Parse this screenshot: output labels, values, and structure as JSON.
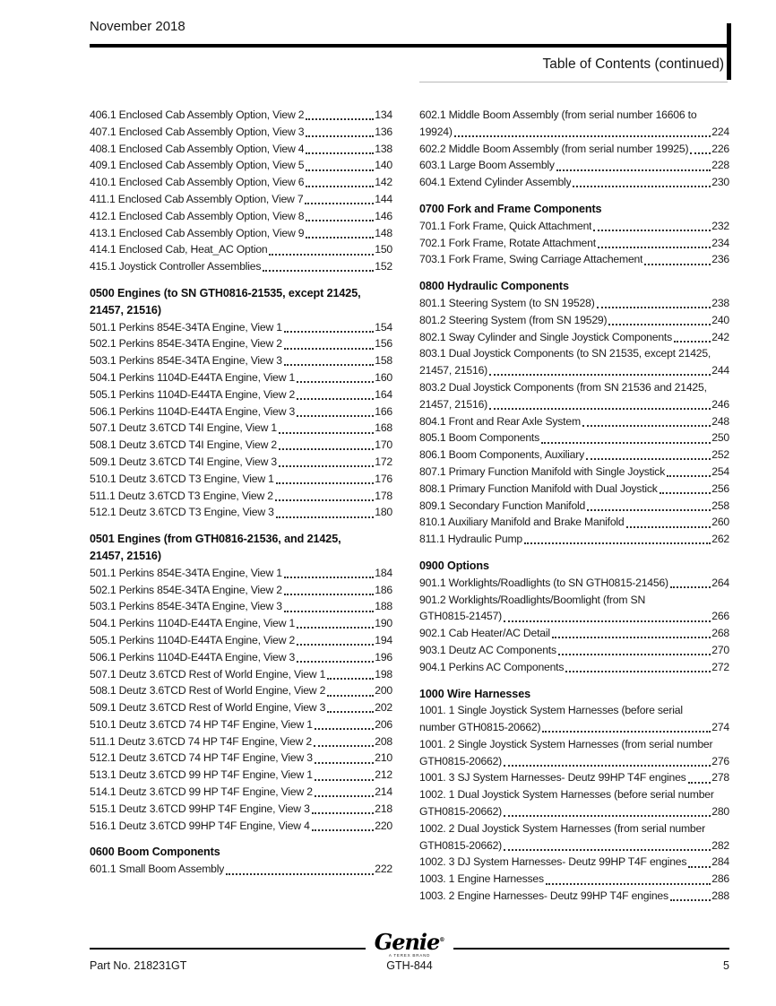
{
  "header": {
    "date": "November 2018",
    "title": "Table of Contents (continued)"
  },
  "toc": {
    "left_column": [
      {
        "heading_lines": [],
        "entries": [
          {
            "lines": [
              "406.1 Enclosed Cab Assembly Option, View 2"
            ],
            "page": "134"
          },
          {
            "lines": [
              "407.1 Enclosed Cab Assembly Option, View 3"
            ],
            "page": "136"
          },
          {
            "lines": [
              "408.1 Enclosed Cab Assembly Option, View 4"
            ],
            "page": "138"
          },
          {
            "lines": [
              "409.1 Enclosed Cab Assembly Option, View 5"
            ],
            "page": "140"
          },
          {
            "lines": [
              "410.1 Enclosed Cab Assembly Option, View 6"
            ],
            "page": "142"
          },
          {
            "lines": [
              "411.1 Enclosed Cab Assembly Option, View 7"
            ],
            "page": "144"
          },
          {
            "lines": [
              "412.1 Enclosed Cab Assembly Option, View 8"
            ],
            "page": "146"
          },
          {
            "lines": [
              "413.1 Enclosed Cab Assembly Option, View 9"
            ],
            "page": "148"
          },
          {
            "lines": [
              "414.1 Enclosed Cab, Heat_AC Option"
            ],
            "page": "150"
          },
          {
            "lines": [
              "415.1 Joystick Controller Assemblies"
            ],
            "page": "152"
          }
        ]
      },
      {
        "heading_lines": [
          "0500 Engines (to SN GTH0816-21535, except 21425,",
          "21457, 21516)"
        ],
        "entries": [
          {
            "lines": [
              "501.1 Perkins 854E-34TA Engine, View 1"
            ],
            "page": "154"
          },
          {
            "lines": [
              "502.1 Perkins 854E-34TA Engine, View 2"
            ],
            "page": "156"
          },
          {
            "lines": [
              "503.1 Perkins 854E-34TA Engine, View 3"
            ],
            "page": "158"
          },
          {
            "lines": [
              "504.1 Perkins 1104D-E44TA Engine, View 1"
            ],
            "page": "160"
          },
          {
            "lines": [
              "505.1 Perkins 1104D-E44TA Engine, View 2"
            ],
            "page": "164"
          },
          {
            "lines": [
              "506.1 Perkins 1104D-E44TA Engine, View 3"
            ],
            "page": "166"
          },
          {
            "lines": [
              "507.1 Deutz 3.6TCD T4I Engine, View 1"
            ],
            "page": "168"
          },
          {
            "lines": [
              "508.1 Deutz 3.6TCD T4I Engine, View 2"
            ],
            "page": "170"
          },
          {
            "lines": [
              "509.1 Deutz 3.6TCD T4I Engine, View 3"
            ],
            "page": "172"
          },
          {
            "lines": [
              "510.1 Deutz 3.6TCD T3 Engine, View 1"
            ],
            "page": "176"
          },
          {
            "lines": [
              "511.1 Deutz 3.6TCD T3 Engine, View 2"
            ],
            "page": "178"
          },
          {
            "lines": [
              "512.1 Deutz 3.6TCD T3 Engine, View 3"
            ],
            "page": "180"
          }
        ]
      },
      {
        "heading_lines": [
          "0501 Engines (from GTH0816-21536, and 21425,",
          "21457, 21516)"
        ],
        "entries": [
          {
            "lines": [
              "501.1 Perkins 854E-34TA Engine, View 1"
            ],
            "page": "184"
          },
          {
            "lines": [
              "502.1 Perkins 854E-34TA Engine, View 2"
            ],
            "page": "186"
          },
          {
            "lines": [
              "503.1 Perkins 854E-34TA Engine, View 3"
            ],
            "page": "188"
          },
          {
            "lines": [
              "504.1 Perkins 1104D-E44TA Engine, View 1"
            ],
            "page": "190"
          },
          {
            "lines": [
              "505.1 Perkins 1104D-E44TA Engine, View 2"
            ],
            "page": "194"
          },
          {
            "lines": [
              "506.1 Perkins 1104D-E44TA Engine, View 3"
            ],
            "page": "196"
          },
          {
            "lines": [
              "507.1 Deutz 3.6TCD Rest of World Engine, View 1"
            ],
            "page": "198"
          },
          {
            "lines": [
              "508.1 Deutz 3.6TCD Rest of World Engine, View 2"
            ],
            "page": "200"
          },
          {
            "lines": [
              "509.1 Deutz 3.6TCD Rest of World Engine, View 3"
            ],
            "page": "202"
          },
          {
            "lines": [
              "510.1 Deutz 3.6TCD 74 HP T4F Engine, View 1"
            ],
            "page": "206"
          },
          {
            "lines": [
              "511.1 Deutz 3.6TCD 74 HP T4F Engine, View 2"
            ],
            "page": "208"
          },
          {
            "lines": [
              "512.1 Deutz 3.6TCD 74 HP T4F Engine, View 3"
            ],
            "page": "210"
          },
          {
            "lines": [
              "513.1 Deutz 3.6TCD 99 HP T4F Engine, View 1"
            ],
            "page": "212"
          },
          {
            "lines": [
              "514.1 Deutz 3.6TCD 99 HP T4F Engine, View 2"
            ],
            "page": "214"
          },
          {
            "lines": [
              "515.1 Deutz 3.6TCD 99HP T4F Engine, View 3"
            ],
            "page": "218"
          },
          {
            "lines": [
              "516.1 Deutz 3.6TCD 99HP T4F Engine, View 4"
            ],
            "page": "220"
          }
        ]
      },
      {
        "heading_lines": [
          "0600 Boom Components"
        ],
        "entries": [
          {
            "lines": [
              "601.1 Small Boom Assembly"
            ],
            "page": "222"
          }
        ]
      }
    ],
    "right_column": [
      {
        "heading_lines": [],
        "entries": [
          {
            "lines": [
              "602.1 Middle Boom Assembly (from serial number 16606 to",
              "19924)"
            ],
            "page": "224"
          },
          {
            "lines": [
              "602.2 Middle Boom Assembly (from serial number 19925)"
            ],
            "page": "226"
          },
          {
            "lines": [
              "603.1 Large Boom Assembly"
            ],
            "page": "228"
          },
          {
            "lines": [
              "604.1 Extend Cylinder Assembly"
            ],
            "page": "230"
          }
        ]
      },
      {
        "heading_lines": [
          "0700 Fork and Frame Components"
        ],
        "entries": [
          {
            "lines": [
              "701.1 Fork Frame, Quick Attachment"
            ],
            "page": "232"
          },
          {
            "lines": [
              "702.1 Fork Frame, Rotate Attachment"
            ],
            "page": "234"
          },
          {
            "lines": [
              "703.1 Fork Frame, Swing Carriage Attachement"
            ],
            "page": "236"
          }
        ]
      },
      {
        "heading_lines": [
          "0800 Hydraulic Components"
        ],
        "entries": [
          {
            "lines": [
              "801.1 Steering System (to SN 19528)"
            ],
            "page": "238"
          },
          {
            "lines": [
              "801.2 Steering System (from SN 19529)"
            ],
            "page": "240"
          },
          {
            "lines": [
              "802.1 Sway Cylinder and Single Joystick Components"
            ],
            "page": "242"
          },
          {
            "lines": [
              "803.1 Dual Joystick Components (to SN 21535, except 21425,",
              "21457,  21516)"
            ],
            "page": "244"
          },
          {
            "lines": [
              "803.2 Dual Joystick Components (from SN 21536 and 21425,",
              "21457,  21516)"
            ],
            "page": "246"
          },
          {
            "lines": [
              "804.1 Front and Rear Axle System"
            ],
            "page": "248"
          },
          {
            "lines": [
              "805.1 Boom Components"
            ],
            "page": "250"
          },
          {
            "lines": [
              "806.1 Boom Components, Auxiliary"
            ],
            "page": "252"
          },
          {
            "lines": [
              "807.1 Primary Function Manifold with Single Joystick"
            ],
            "page": "254"
          },
          {
            "lines": [
              "808.1 Primary Function Manifold with Dual Joystick"
            ],
            "page": "256"
          },
          {
            "lines": [
              "809.1 Secondary Function Manifold"
            ],
            "page": "258"
          },
          {
            "lines": [
              "810.1 Auxiliary Manifold and Brake Manifold"
            ],
            "page": "260"
          },
          {
            "lines": [
              "811.1 Hydraulic Pump"
            ],
            "page": "262"
          }
        ]
      },
      {
        "heading_lines": [
          "0900 Options"
        ],
        "entries": [
          {
            "lines": [
              "901.1 Worklights/Roadlights (to SN GTH0815-21456)"
            ],
            "page": "264"
          },
          {
            "lines": [
              "901.2 Worklights/Roadlights/Boomlight (from SN",
              "GTH0815-21457)"
            ],
            "page": "266"
          },
          {
            "lines": [
              "902.1 Cab Heater/AC Detail"
            ],
            "page": "268"
          },
          {
            "lines": [
              "903.1 Deutz AC Components"
            ],
            "page": "270"
          },
          {
            "lines": [
              "904.1 Perkins AC Components"
            ],
            "page": "272"
          }
        ]
      },
      {
        "heading_lines": [
          "1000 Wire Harnesses"
        ],
        "entries": [
          {
            "lines": [
              "1001. 1 Single Joystick System Harnesses (before serial",
              "number  GTH0815-20662)"
            ],
            "page": "274"
          },
          {
            "lines": [
              "1001. 2 Single Joystick System Harnesses (from serial number",
              "GTH0815-20662)"
            ],
            "page": "276"
          },
          {
            "lines": [
              "1001. 3 SJ System Harnesses- Deutz 99HP T4F engines"
            ],
            "page": "278"
          },
          {
            "lines": [
              "1002. 1 Dual Joystick System Harnesses (before serial number",
              "GTH0815-20662)"
            ],
            "page": "280"
          },
          {
            "lines": [
              "1002. 2 Dual Joystick System Harnesses (from serial number",
              "GTH0815-20662)"
            ],
            "page": "282"
          },
          {
            "lines": [
              "1002. 3 DJ System Harnesses- Deutz 99HP T4F engines"
            ],
            "page": "284"
          },
          {
            "lines": [
              "1003. 1 Engine Harnesses"
            ],
            "page": "286"
          },
          {
            "lines": [
              "1003. 2 Engine Harnesses- Deutz 99HP T4F engines"
            ],
            "page": "288"
          }
        ]
      }
    ]
  },
  "footer": {
    "brand": "Genie",
    "brand_registered": "®",
    "brand_sub": "A TEREX BRAND",
    "part_no": "Part No. 218231GT",
    "model": "GTH-844",
    "page_number": "5"
  }
}
